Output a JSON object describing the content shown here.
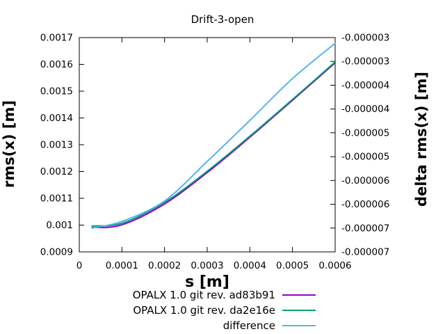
{
  "chart_data": {
    "type": "line",
    "title": "Drift-3-open",
    "xlabel": "s [m]",
    "ylabel": "rms(x) [m]",
    "y2label": "delta rms(x) [m]",
    "grid": false,
    "legend_position": "below plot, bottom-right",
    "background": "#ffffff",
    "axis_color": "#000000",
    "x_range": [
      0,
      0.0006
    ],
    "x_tick_values": [
      0,
      0.0001,
      0.0002,
      0.0003,
      0.0004,
      0.0005,
      0.0006
    ],
    "x_tick_labels": [
      "0",
      "0.0001",
      "0.0002",
      "0.0003",
      "0.0004",
      "0.0005",
      "0.0006"
    ],
    "y_range": [
      0.0009,
      0.0017
    ],
    "y_tick_values": [
      0.0009,
      0.001,
      0.0011,
      0.0012,
      0.0013,
      0.0014,
      0.0015,
      0.0016,
      0.0017
    ],
    "y_tick_labels": [
      "0.0009",
      "0.001",
      "0.0011",
      "0.0012",
      "0.0013",
      "0.0014",
      "0.0015",
      "0.0016",
      "0.0017"
    ],
    "y2_range": [
      -7e-06,
      -2.5e-06
    ],
    "y2_tick_values": [
      -7e-06,
      -6.5e-06,
      -6e-06,
      -5.5e-06,
      -5e-06,
      -4.5e-06,
      -4e-06,
      -3.5e-06,
      -3e-06,
      -2.5e-06
    ],
    "y2_tick_labels": [
      "-0.000007",
      "-0.000007",
      "-0.000006",
      "-0.000006",
      "-0.000005",
      "-0.000005",
      "-0.000004",
      "-0.000004",
      "-0.000003",
      "-0.000003"
    ],
    "series": [
      {
        "name": "OPALX 1.0 git rev. ad83b91",
        "color": "#9400d3",
        "axis": "left",
        "x": [
          3e-05,
          0.0001,
          0.0002,
          0.0003,
          0.0004,
          0.0005,
          0.0006
        ],
        "y": [
          0.000991,
          0.001001,
          0.001079,
          0.001196,
          0.001328,
          0.001466,
          0.001606
        ]
      },
      {
        "name": "OPALX 1.0 git rev. da2e16e",
        "color": "#009e73",
        "axis": "left",
        "x": [
          3e-05,
          0.0001,
          0.0002,
          0.0003,
          0.0004,
          0.0005,
          0.0006
        ],
        "y": [
          0.000997,
          0.001007,
          0.001085,
          0.001201,
          0.001332,
          0.001469,
          0.001609
        ]
      },
      {
        "name": "difference",
        "color": "#56b4e9",
        "axis": "right",
        "x": [
          3e-05,
          0.0001,
          0.0002,
          0.0003,
          0.0004,
          0.0005,
          0.0006
        ],
        "y": [
          -6.5e-06,
          -6.36e-06,
          -5.93e-06,
          -5.1e-06,
          -4.24e-06,
          -3.36e-06,
          -2.62e-06
        ]
      }
    ]
  }
}
